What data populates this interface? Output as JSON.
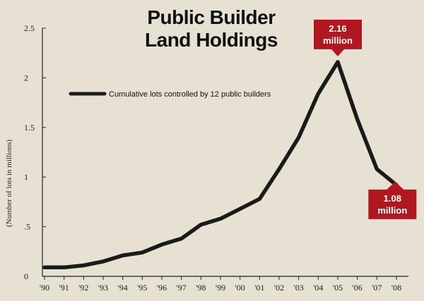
{
  "chart_data": {
    "type": "line",
    "title_lines": [
      "Public Builder",
      "Land Holdings"
    ],
    "ylabel": "(Number of lots in millions)",
    "xlabel": "",
    "categories": [
      "'90",
      "'91",
      "'92",
      "'93",
      "'94",
      "'95",
      "'96",
      "'97",
      "'98",
      "'99",
      "'00",
      "'01",
      "'02",
      "'03",
      "'04",
      "'05",
      "'06",
      "'07",
      "'08"
    ],
    "y_tick_labels": [
      "0",
      ".5",
      "1",
      "1.5",
      "2",
      "2.5"
    ],
    "y_tick_values": [
      0,
      0.5,
      1,
      1.5,
      2,
      2.5
    ],
    "ylim": [
      0,
      2.5
    ],
    "grid": false,
    "legend_position": "top-left",
    "series": [
      {
        "name": "Cumulative lots controlled by 12 public builders",
        "values": [
          0.09,
          0.09,
          0.11,
          0.15,
          0.21,
          0.24,
          0.32,
          0.38,
          0.52,
          0.58,
          0.68,
          0.78,
          1.08,
          1.4,
          1.84,
          2.16,
          1.58,
          1.08,
          0.92
        ]
      }
    ],
    "annotations": [
      {
        "lines": [
          "2.16",
          "million"
        ],
        "category": "'05",
        "value": 2.16,
        "pointer": "down"
      },
      {
        "lines": [
          "1.08",
          "million"
        ],
        "category": "'07",
        "value": 1.08,
        "pointer": "up"
      }
    ],
    "colors": {
      "background": "#e6e1d2",
      "line": "#1a1a1a",
      "axis": "#222222",
      "callout": "#b11721"
    }
  }
}
